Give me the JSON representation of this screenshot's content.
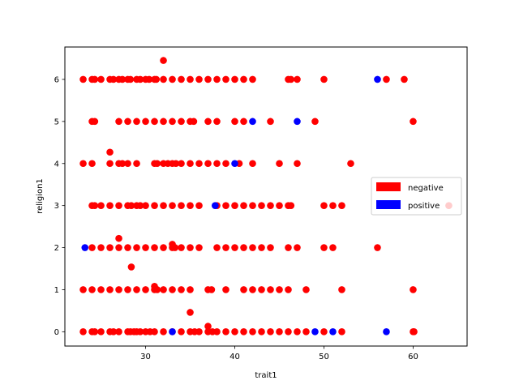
{
  "chart_data": {
    "type": "scatter",
    "title": "",
    "xlabel": "trait1",
    "ylabel": "religion1",
    "xlim": [
      20.95,
      66.05
    ],
    "ylim": [
      -0.34,
      6.77
    ],
    "xticks": [
      30,
      40,
      50,
      60
    ],
    "yticks": [
      0,
      1,
      2,
      3,
      4,
      5,
      6
    ],
    "grid": false,
    "legend_position": "center-right",
    "series": [
      {
        "name": "negative",
        "color": "#ff0000",
        "points": [
          [
            23,
            6
          ],
          [
            24,
            6
          ],
          [
            24.3,
            6
          ],
          [
            25,
            6
          ],
          [
            26,
            6
          ],
          [
            26.4,
            6
          ],
          [
            27,
            6
          ],
          [
            27.4,
            6
          ],
          [
            28,
            6
          ],
          [
            28.3,
            6
          ],
          [
            29,
            6
          ],
          [
            29.4,
            6
          ],
          [
            30,
            6
          ],
          [
            30.4,
            6
          ],
          [
            31,
            6
          ],
          [
            31.2,
            6
          ],
          [
            32,
            6
          ],
          [
            33,
            6
          ],
          [
            34,
            6
          ],
          [
            35,
            6
          ],
          [
            36,
            6
          ],
          [
            37,
            6
          ],
          [
            38,
            6
          ],
          [
            39,
            6
          ],
          [
            40,
            6
          ],
          [
            41,
            6
          ],
          [
            42,
            6
          ],
          [
            46,
            6
          ],
          [
            46.3,
            6
          ],
          [
            47,
            6
          ],
          [
            50,
            6
          ],
          [
            57,
            6
          ],
          [
            59,
            6
          ],
          [
            32,
            6.45
          ],
          [
            24,
            5
          ],
          [
            24.3,
            5
          ],
          [
            27,
            5
          ],
          [
            28,
            5
          ],
          [
            29,
            5
          ],
          [
            30,
            5
          ],
          [
            31,
            5
          ],
          [
            32,
            5
          ],
          [
            33,
            5
          ],
          [
            34,
            5
          ],
          [
            35,
            5
          ],
          [
            35.4,
            5
          ],
          [
            37,
            5
          ],
          [
            38,
            5
          ],
          [
            40,
            5
          ],
          [
            41,
            5
          ],
          [
            44,
            5
          ],
          [
            49,
            5
          ],
          [
            60,
            5
          ],
          [
            26,
            4.27
          ],
          [
            23,
            4
          ],
          [
            24,
            4
          ],
          [
            26,
            4
          ],
          [
            27,
            4
          ],
          [
            27.4,
            4
          ],
          [
            28,
            4
          ],
          [
            29,
            4
          ],
          [
            31,
            4
          ],
          [
            31.3,
            4
          ],
          [
            32,
            4
          ],
          [
            32.5,
            4
          ],
          [
            33,
            4
          ],
          [
            33.4,
            4
          ],
          [
            34,
            4
          ],
          [
            35,
            4
          ],
          [
            36,
            4
          ],
          [
            37,
            4
          ],
          [
            38,
            4
          ],
          [
            39,
            4
          ],
          [
            40.5,
            4
          ],
          [
            42,
            4
          ],
          [
            45,
            4
          ],
          [
            47,
            4
          ],
          [
            53,
            4
          ],
          [
            24,
            3
          ],
          [
            24.3,
            3
          ],
          [
            25,
            3
          ],
          [
            26,
            3
          ],
          [
            27,
            3
          ],
          [
            28,
            3
          ],
          [
            28.4,
            3
          ],
          [
            29,
            3
          ],
          [
            29.4,
            3
          ],
          [
            30,
            3
          ],
          [
            31,
            3
          ],
          [
            32,
            3
          ],
          [
            33,
            3
          ],
          [
            34,
            3
          ],
          [
            35,
            3
          ],
          [
            36,
            3
          ],
          [
            38,
            3
          ],
          [
            39,
            3
          ],
          [
            40,
            3
          ],
          [
            41,
            3
          ],
          [
            42,
            3
          ],
          [
            43,
            3
          ],
          [
            44,
            3
          ],
          [
            45,
            3
          ],
          [
            46,
            3
          ],
          [
            46.3,
            3
          ],
          [
            50,
            3
          ],
          [
            51,
            3
          ],
          [
            52,
            3
          ],
          [
            64,
            3
          ],
          [
            27,
            2.22
          ],
          [
            24,
            2
          ],
          [
            25,
            2
          ],
          [
            26,
            2
          ],
          [
            27,
            2
          ],
          [
            28,
            2
          ],
          [
            29,
            2
          ],
          [
            30,
            2
          ],
          [
            31,
            2
          ],
          [
            32,
            2
          ],
          [
            33,
            2
          ],
          [
            33.3,
            2
          ],
          [
            34,
            2
          ],
          [
            35,
            2
          ],
          [
            36,
            2
          ],
          [
            38,
            2
          ],
          [
            39,
            2
          ],
          [
            40,
            2
          ],
          [
            41,
            2
          ],
          [
            42,
            2
          ],
          [
            43,
            2
          ],
          [
            44,
            2
          ],
          [
            46,
            2
          ],
          [
            47,
            2
          ],
          [
            50,
            2
          ],
          [
            51,
            2
          ],
          [
            56,
            2
          ],
          [
            33,
            2.08
          ],
          [
            28.4,
            1.54
          ],
          [
            23,
            1
          ],
          [
            24,
            1
          ],
          [
            25,
            1
          ],
          [
            26,
            1
          ],
          [
            27,
            1
          ],
          [
            28,
            1
          ],
          [
            29,
            1
          ],
          [
            30,
            1
          ],
          [
            31,
            1
          ],
          [
            31.3,
            1
          ],
          [
            32,
            1
          ],
          [
            33,
            1
          ],
          [
            34,
            1
          ],
          [
            35,
            1
          ],
          [
            37,
            1
          ],
          [
            37.4,
            1
          ],
          [
            39,
            1
          ],
          [
            41,
            1
          ],
          [
            42,
            1
          ],
          [
            43,
            1
          ],
          [
            44,
            1
          ],
          [
            45,
            1
          ],
          [
            46,
            1
          ],
          [
            48,
            1
          ],
          [
            52,
            1
          ],
          [
            60,
            1
          ],
          [
            31,
            1.08
          ],
          [
            35,
            0.46
          ],
          [
            37,
            0.13
          ],
          [
            23,
            0
          ],
          [
            24,
            0
          ],
          [
            24.3,
            0
          ],
          [
            25,
            0
          ],
          [
            26,
            0
          ],
          [
            26.4,
            0
          ],
          [
            27,
            0
          ],
          [
            28,
            0
          ],
          [
            28.3,
            0
          ],
          [
            28.7,
            0
          ],
          [
            29,
            0
          ],
          [
            29.4,
            0
          ],
          [
            30,
            0
          ],
          [
            30.5,
            0
          ],
          [
            31,
            0
          ],
          [
            32,
            0
          ],
          [
            33,
            0
          ],
          [
            34,
            0
          ],
          [
            35,
            0
          ],
          [
            35.5,
            0
          ],
          [
            36,
            0
          ],
          [
            37,
            0
          ],
          [
            37.5,
            0
          ],
          [
            38,
            0
          ],
          [
            39,
            0
          ],
          [
            40,
            0
          ],
          [
            41,
            0
          ],
          [
            42,
            0
          ],
          [
            43,
            0
          ],
          [
            44,
            0
          ],
          [
            45,
            0
          ],
          [
            46,
            0
          ],
          [
            47,
            0
          ],
          [
            48,
            0
          ],
          [
            50,
            0
          ],
          [
            52,
            0
          ],
          [
            60,
            0
          ],
          [
            60.1,
            0
          ]
        ]
      },
      {
        "name": "positive",
        "color": "#0000ff",
        "points": [
          [
            56,
            6
          ],
          [
            42,
            5
          ],
          [
            47,
            5
          ],
          [
            40,
            4
          ],
          [
            37.8,
            3
          ],
          [
            23.2,
            2
          ],
          [
            33,
            0
          ],
          [
            49,
            0
          ],
          [
            51,
            0
          ],
          [
            57,
            0
          ]
        ]
      }
    ]
  }
}
